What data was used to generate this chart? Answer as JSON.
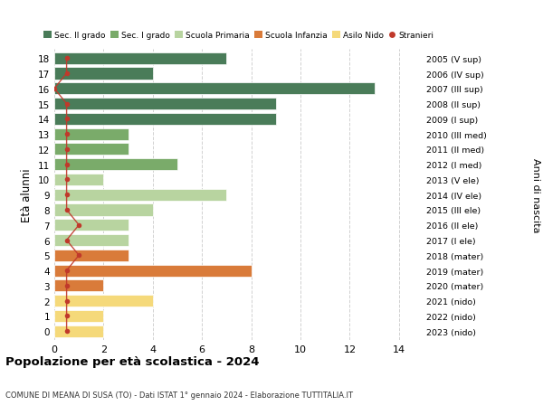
{
  "ages": [
    18,
    17,
    16,
    15,
    14,
    13,
    12,
    11,
    10,
    9,
    8,
    7,
    6,
    5,
    4,
    3,
    2,
    1,
    0
  ],
  "years_labels": [
    "2005 (V sup)",
    "2006 (IV sup)",
    "2007 (III sup)",
    "2008 (II sup)",
    "2009 (I sup)",
    "2010 (III med)",
    "2011 (II med)",
    "2012 (I med)",
    "2013 (V ele)",
    "2014 (IV ele)",
    "2015 (III ele)",
    "2016 (II ele)",
    "2017 (I ele)",
    "2018 (mater)",
    "2019 (mater)",
    "2020 (mater)",
    "2021 (nido)",
    "2022 (nido)",
    "2023 (nido)"
  ],
  "bar_values": [
    7,
    4,
    13,
    9,
    9,
    3,
    3,
    5,
    2,
    7,
    4,
    3,
    3,
    3,
    8,
    2,
    4,
    2,
    2
  ],
  "bar_colors": [
    "#4a7c59",
    "#4a7c59",
    "#4a7c59",
    "#4a7c59",
    "#4a7c59",
    "#7aab6a",
    "#7aab6a",
    "#7aab6a",
    "#b8d4a0",
    "#b8d4a0",
    "#b8d4a0",
    "#b8d4a0",
    "#b8d4a0",
    "#d97b3a",
    "#d97b3a",
    "#d97b3a",
    "#f5d97a",
    "#f5d97a",
    "#f5d97a"
  ],
  "stranieri_x": [
    0.5,
    0.5,
    0.0,
    0.5,
    0.5,
    0.5,
    0.5,
    0.5,
    0.5,
    0.5,
    0.5,
    1.0,
    0.5,
    1.0,
    0.5,
    0.5,
    0.5,
    0.5,
    0.5
  ],
  "legend_labels": [
    "Sec. II grado",
    "Sec. I grado",
    "Scuola Primaria",
    "Scuola Infanzia",
    "Asilo Nido",
    "Stranieri"
  ],
  "legend_colors": [
    "#4a7c59",
    "#7aab6a",
    "#b8d4a0",
    "#d97b3a",
    "#f5d97a",
    "#c0392b"
  ],
  "stranieri_color": "#c0392b",
  "title": "Popolazione per età scolastica - 2024",
  "subtitle": "COMUNE DI MEANA DI SUSA (TO) - Dati ISTAT 1° gennaio 2024 - Elaborazione TUTTITALIA.IT",
  "ylabel": "Età alunni",
  "ylabel2": "Anni di nascita",
  "xlim": [
    0,
    15
  ],
  "xticks": [
    0,
    2,
    4,
    6,
    8,
    10,
    12,
    14
  ],
  "bg_color": "#ffffff",
  "grid_color": "#cccccc",
  "bar_height": 0.78
}
